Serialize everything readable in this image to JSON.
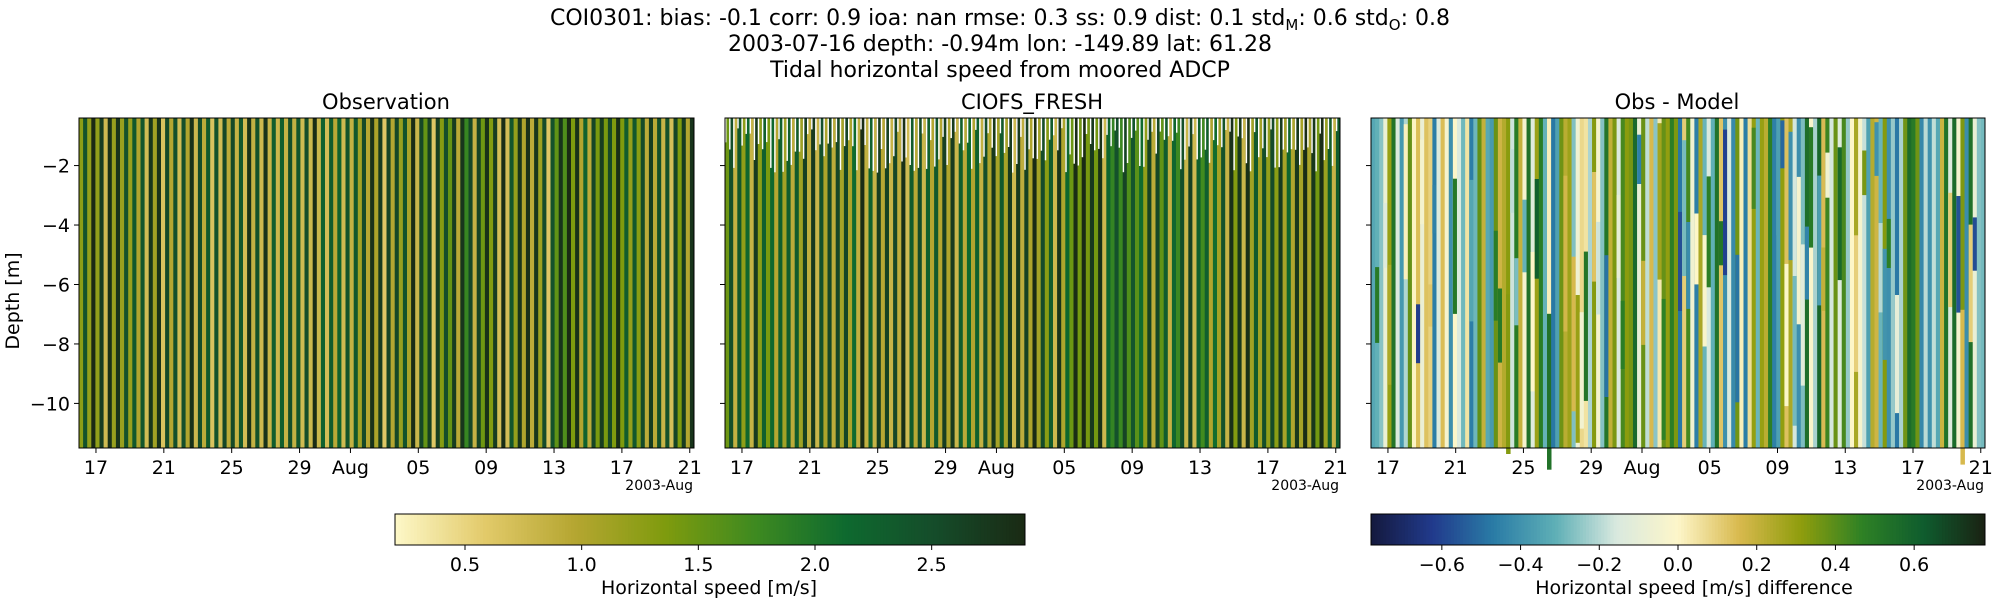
{
  "header": {
    "line1_parts": [
      {
        "text": "COI0301: bias: -0.1  corr: 0.9  ioa: nan  rmse: 0.3  ss: 0.9  dist: 0.1  std"
      },
      {
        "text": "M",
        "sub": true
      },
      {
        "text": ": 0.6  std"
      },
      {
        "text": "O",
        "sub": true
      },
      {
        "text": ": 0.8"
      }
    ],
    "line2": "2003-07-16 depth: -0.94m lon: -149.89 lat: 61.28",
    "line3": "Tidal horizontal speed from moored ADCP"
  },
  "chart_data": [
    {
      "type": "heatmap",
      "title": "Observation",
      "ylabel": "Depth [m]",
      "xlabel": "",
      "x_tick_labels": [
        "17",
        "21",
        "25",
        "29",
        "Aug",
        "05",
        "09",
        "13",
        "17",
        "21"
      ],
      "x_offset_label": "2003-Aug",
      "x_range": [
        "2003-07-16",
        "2003-08-21"
      ],
      "y_tick_labels": [
        "-2",
        "-4",
        "-6",
        "-8",
        "-10"
      ],
      "y_ticks": [
        -2,
        -4,
        -6,
        -8,
        -10
      ],
      "ylim": [
        -11.5,
        -0.4
      ],
      "colormap": "speed",
      "vmin": 0.2,
      "vmax": 2.9,
      "description_values": "tidal speed oscillating roughly 0.2-2.9 m/s, lighter near late July"
    },
    {
      "type": "heatmap",
      "title": "CIOFS_FRESH",
      "x_tick_labels": [
        "17",
        "21",
        "25",
        "29",
        "Aug",
        "05",
        "09",
        "13",
        "17",
        "21"
      ],
      "x_offset_label": "2003-Aug",
      "x_range": [
        "2003-07-16",
        "2003-08-21"
      ],
      "ylim": [
        -11.5,
        -0.4
      ],
      "colormap": "speed",
      "vmin": 0.2,
      "vmax": 2.9
    },
    {
      "type": "heatmap",
      "title": "Obs - Model",
      "x_tick_labels": [
        "17",
        "21",
        "25",
        "29",
        "Aug",
        "05",
        "09",
        "13",
        "17",
        "21"
      ],
      "x_offset_label": "2003-Aug",
      "x_range": [
        "2003-07-16",
        "2003-08-21"
      ],
      "ylim": [
        -11.5,
        -0.4
      ],
      "colormap": "diverging",
      "vmin": -0.78,
      "vmax": 0.78
    }
  ],
  "colorbars": [
    {
      "label": "Horizontal speed [m/s]",
      "ticks": [
        "0.5",
        "1.0",
        "1.5",
        "2.0",
        "2.5"
      ],
      "tick_values": [
        0.5,
        1.0,
        1.5,
        2.0,
        2.5
      ],
      "range": [
        0.2,
        2.9
      ],
      "colors": [
        "#fdf8c8",
        "#e2ca6a",
        "#b5a631",
        "#7f9b0e",
        "#3e8a20",
        "#0e6a2f",
        "#154c2a",
        "#1a2a14"
      ]
    },
    {
      "label": "Horizontal speed [m/s] difference",
      "ticks": [
        "−0.6",
        "−0.4",
        "−0.2",
        "0.0",
        "0.2",
        "0.4",
        "0.6"
      ],
      "tick_values": [
        -0.6,
        -0.4,
        -0.2,
        0.0,
        0.2,
        0.4,
        0.6
      ],
      "range": [
        -0.78,
        0.78
      ],
      "colors": [
        "#14193d",
        "#213a8c",
        "#2a7ca6",
        "#5eafb6",
        "#d9e9df",
        "#fdf6c9",
        "#d8b94e",
        "#8f9d0d",
        "#2e8125",
        "#0f5c2e",
        "#1a2213"
      ]
    }
  ]
}
